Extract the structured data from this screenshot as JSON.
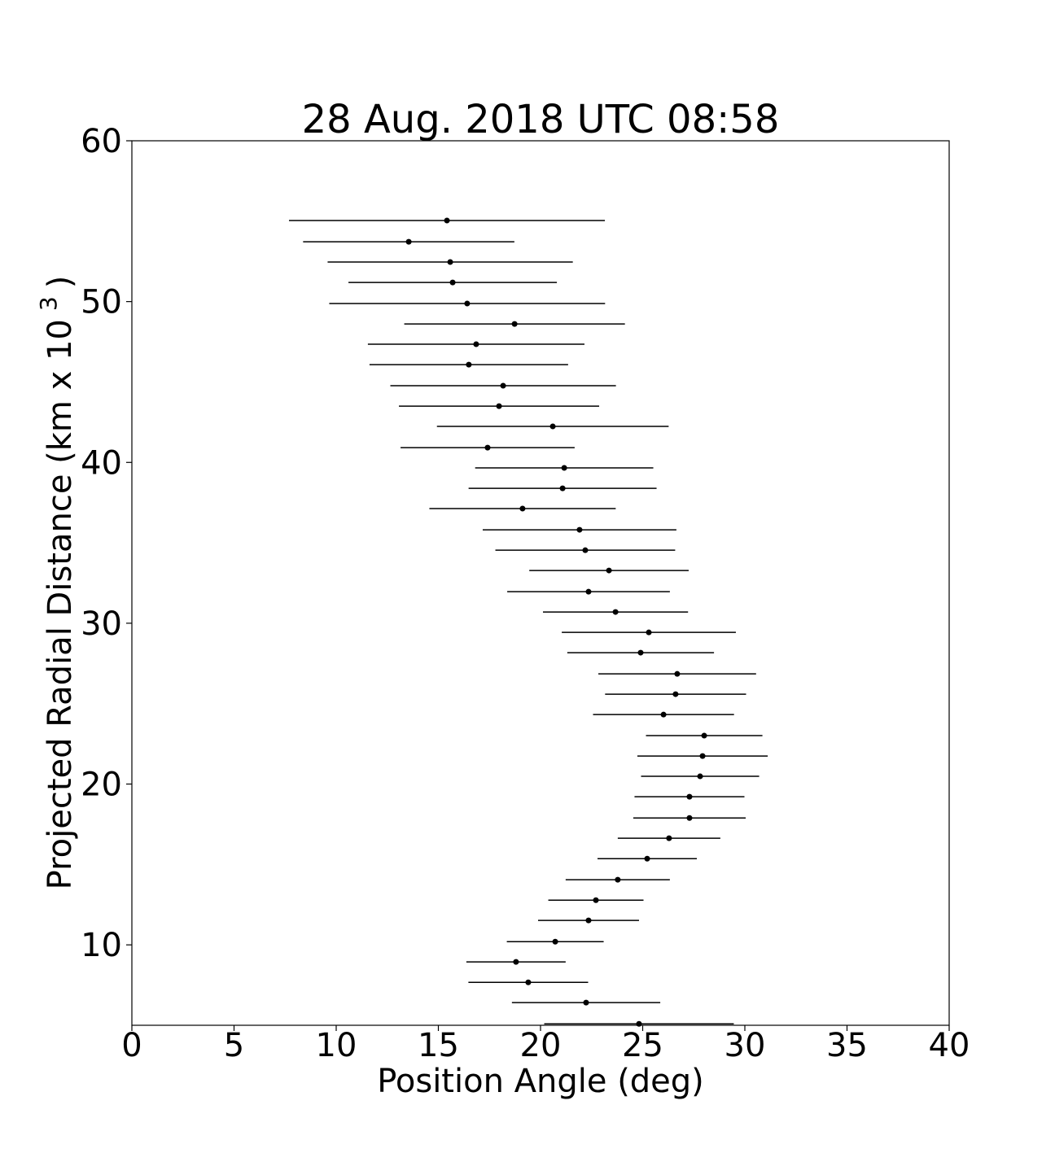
{
  "chart_data": {
    "type": "errorbar_scatter",
    "title": "28 Aug. 2018 UTC 08:58",
    "x_label": "Position Angle (deg)",
    "y_label": [
      "Projected Radial Distance (km x 10",
      "3",
      ")"
    ],
    "color": "#000000",
    "x": [
      15.42,
      13.55,
      15.58,
      15.7,
      16.41,
      18.73,
      16.85,
      16.49,
      18.17,
      17.97,
      20.6,
      17.41,
      21.16,
      21.08,
      19.12,
      21.91,
      22.19,
      23.35,
      22.35,
      23.67,
      25.3,
      24.9,
      26.69,
      26.61,
      26.02,
      28.01,
      27.93,
      27.81,
      27.29,
      27.29,
      26.29,
      25.22,
      23.78,
      22.71,
      22.35,
      20.72,
      18.8,
      19.4,
      22.23,
      24.82
    ],
    "xerr": [
      7.73,
      5.17,
      6.0,
      5.1,
      6.75,
      5.4,
      5.3,
      4.86,
      5.52,
      4.9,
      5.67,
      4.26,
      4.36,
      4.6,
      4.56,
      4.74,
      4.4,
      3.9,
      3.98,
      3.55,
      4.26,
      3.59,
      3.86,
      3.45,
      3.45,
      2.85,
      3.19,
      2.89,
      2.69,
      2.75,
      2.51,
      2.43,
      2.55,
      2.33,
      2.47,
      2.37,
      2.43,
      2.93,
      3.63,
      4.64
    ],
    "y": [
      55.04,
      53.72,
      52.46,
      51.19,
      49.88,
      48.61,
      47.35,
      46.08,
      44.77,
      43.5,
      42.24,
      40.92,
      39.66,
      38.39,
      37.13,
      35.81,
      34.54,
      33.28,
      31.96,
      30.7,
      29.43,
      28.17,
      26.85,
      25.59,
      24.32,
      23.01,
      21.74,
      20.48,
      19.21,
      17.89,
      16.63,
      15.36,
      14.05,
      12.78,
      11.52,
      10.2,
      8.94,
      7.67,
      6.41,
      5.09
    ],
    "xlim": [
      0,
      40
    ],
    "xticks": [
      0,
      5,
      10,
      15,
      20,
      25,
      30,
      35,
      40
    ],
    "ylim": [
      5,
      60
    ],
    "yticks": [
      10,
      20,
      30,
      40,
      50,
      60
    ]
  }
}
